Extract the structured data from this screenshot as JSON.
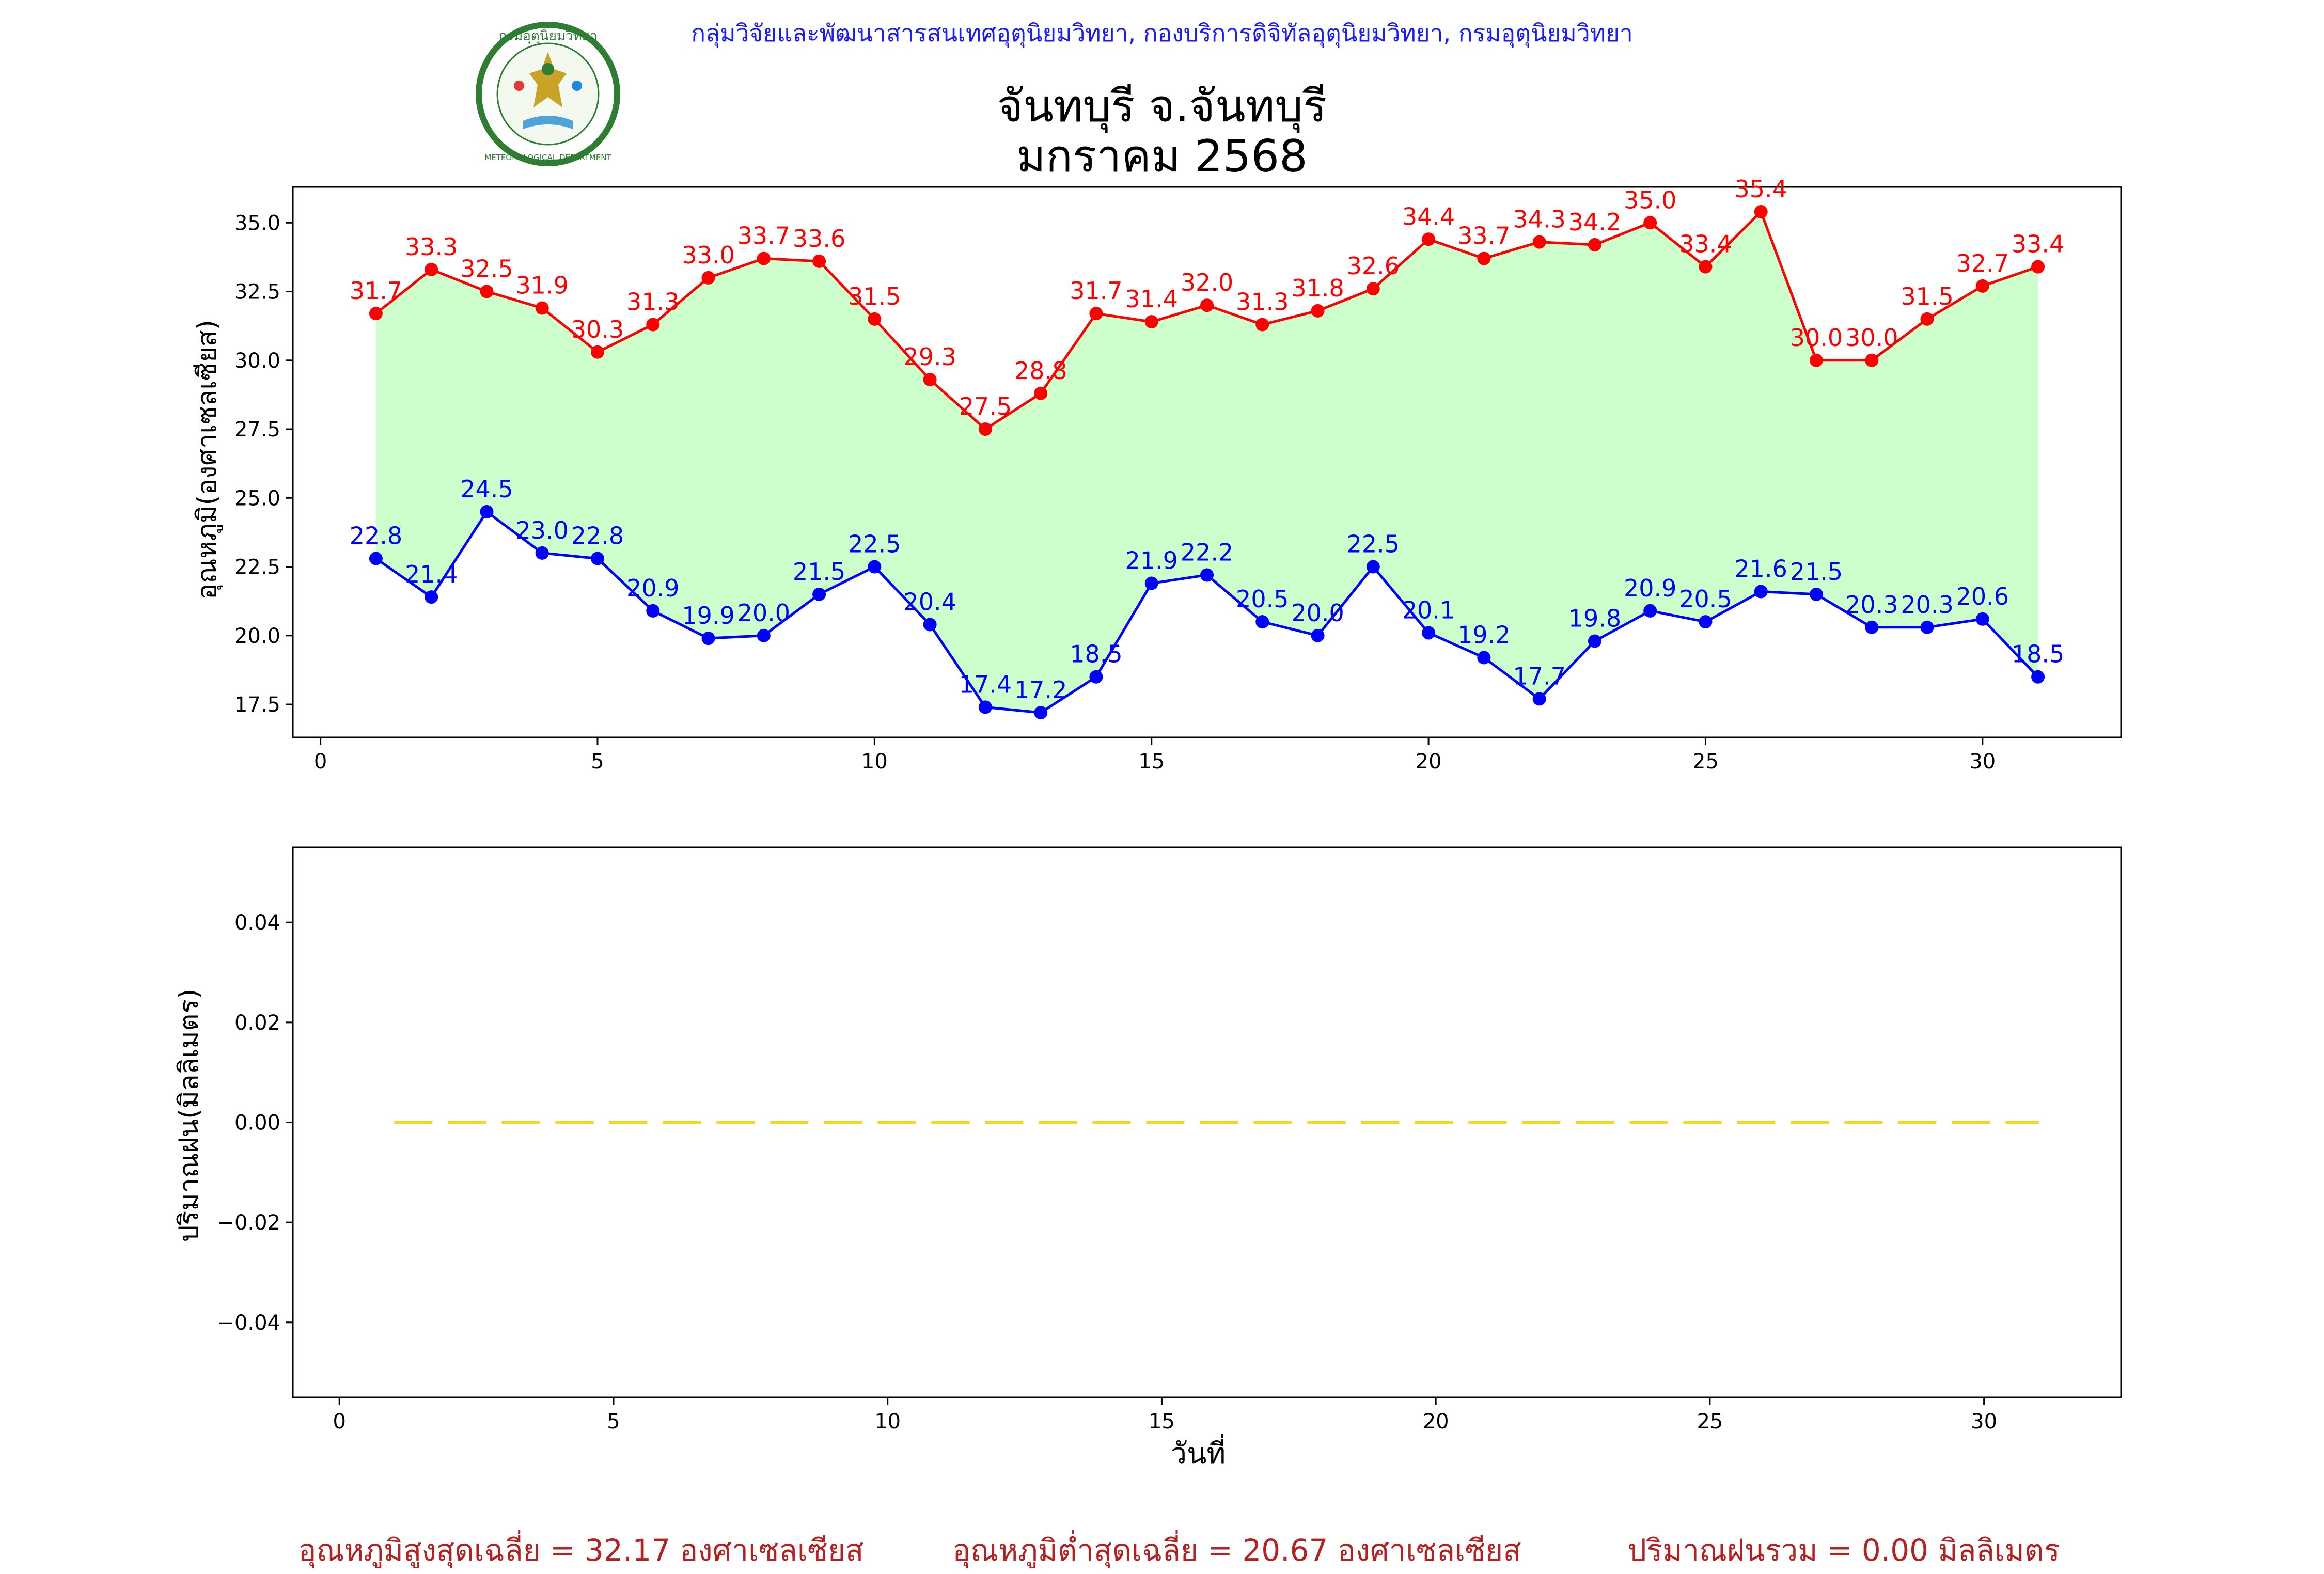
{
  "header": {
    "agency": "กลุ่มวิจัยและพัฒนาสารสนเทศอุตุนิยมวิทยา, กองบริการดิจิทัลอุตุนิยมวิทยา, กรมอุตุนิยมวิทยา",
    "logo_text_top": "กรมอุตุนิยมวิทยา",
    "logo_text_bottom": "METEOROLOGICAL DEPARTMENT",
    "title_line1": "จันทบุรี จ.จันทบุรี",
    "title_line2": "มกราคม 2568"
  },
  "summary": {
    "avg_max": "อุณหภูมิสูงสุดเฉลี่ย = 32.17 องศาเซลเซียส",
    "avg_min": "อุณหภูมิต่ำสุดเฉลี่ย = 20.67 องศาเซลเซียส",
    "rain_total": "ปริมาณฝนรวม = 0.00 มิลลิเมตร"
  },
  "colors": {
    "max": "#ff0000",
    "min": "#0000ff",
    "fill": "#ccffcc",
    "rain": "#ffd700",
    "summary": "#b22222",
    "agency": "#1a1aff"
  },
  "chart_data": [
    {
      "type": "line",
      "ylabel": "อุณหภูมิ(องศาเซลเซียส)",
      "xlabel": "",
      "xlim": [
        -0.5,
        32.5
      ],
      "ylim": [
        16.3,
        36.3
      ],
      "xticks": [
        0,
        5,
        10,
        15,
        20,
        25,
        30
      ],
      "yticks": [
        17.5,
        20.0,
        22.5,
        25.0,
        27.5,
        30.0,
        32.5,
        35.0
      ],
      "grid": false,
      "fill_between": true,
      "x": [
        1,
        2,
        3,
        4,
        5,
        6,
        7,
        8,
        9,
        10,
        11,
        12,
        13,
        14,
        15,
        16,
        17,
        18,
        19,
        20,
        21,
        22,
        23,
        24,
        25,
        26,
        27,
        28,
        29,
        30,
        31
      ],
      "series": [
        {
          "key": "max",
          "values": [
            31.7,
            33.3,
            32.5,
            31.9,
            30.3,
            31.3,
            33.0,
            33.7,
            33.6,
            31.5,
            29.3,
            27.5,
            28.8,
            31.7,
            31.4,
            32.0,
            31.3,
            31.8,
            32.6,
            34.4,
            33.7,
            34.3,
            34.2,
            35.0,
            33.4,
            35.4,
            30.0,
            30.0,
            31.5,
            32.7,
            33.4
          ],
          "data_labels": true
        },
        {
          "key": "min",
          "values": [
            22.8,
            21.4,
            24.5,
            23.0,
            22.8,
            20.9,
            19.9,
            20.0,
            21.5,
            22.5,
            20.4,
            17.4,
            17.2,
            18.5,
            21.9,
            22.2,
            20.5,
            20.0,
            22.5,
            20.1,
            19.2,
            17.7,
            19.8,
            20.9,
            20.5,
            21.6,
            21.5,
            20.3,
            20.3,
            20.6,
            18.5
          ],
          "data_labels": true
        }
      ]
    },
    {
      "type": "line",
      "ylabel": "ปริมาณฝน(มิลลิเมตร)",
      "xlabel": "วันที่",
      "xlim": [
        -0.85,
        32.5
      ],
      "ylim": [
        -0.055,
        0.055
      ],
      "xticks": [
        0,
        5,
        10,
        15,
        20,
        25,
        30
      ],
      "yticks": [
        -0.04,
        -0.02,
        0.0,
        0.02,
        0.04
      ],
      "grid": false,
      "line_style": "dashed",
      "x": [
        1,
        2,
        3,
        4,
        5,
        6,
        7,
        8,
        9,
        10,
        11,
        12,
        13,
        14,
        15,
        16,
        17,
        18,
        19,
        20,
        21,
        22,
        23,
        24,
        25,
        26,
        27,
        28,
        29,
        30,
        31
      ],
      "series": [
        {
          "key": "rain",
          "values": [
            0,
            0,
            0,
            0,
            0,
            0,
            0,
            0,
            0,
            0,
            0,
            0,
            0,
            0,
            0,
            0,
            0,
            0,
            0,
            0,
            0,
            0,
            0,
            0,
            0,
            0,
            0,
            0,
            0,
            0,
            0
          ]
        }
      ]
    }
  ]
}
